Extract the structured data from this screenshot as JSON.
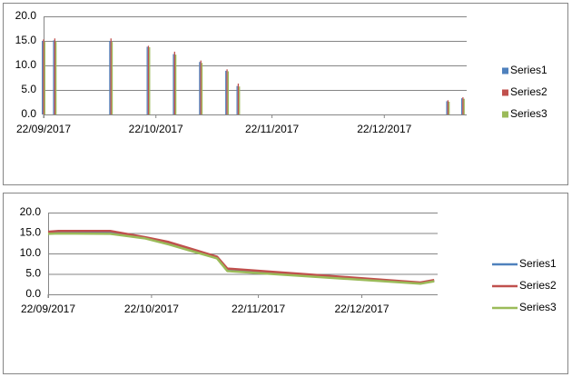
{
  "chart_data": [
    {
      "type": "bar",
      "x": [
        "22/09/2017",
        "25/09/2017",
        "10/10/2017",
        "20/10/2017",
        "27/10/2017",
        "03/11/2017",
        "10/11/2017",
        "13/11/2017",
        "08/01/2018",
        "12/01/2018"
      ],
      "series": [
        {
          "name": "Series1",
          "color": "#4f81bd",
          "values": [
            15.0,
            15.1,
            15.0,
            13.8,
            12.3,
            10.7,
            8.9,
            5.8,
            2.7,
            3.3
          ]
        },
        {
          "name": "Series2",
          "color": "#c0504d",
          "values": [
            15.3,
            15.5,
            15.5,
            14.0,
            12.8,
            11.0,
            9.2,
            6.3,
            2.9,
            3.5
          ]
        },
        {
          "name": "Series3",
          "color": "#9bbb59",
          "values": [
            14.8,
            14.9,
            14.8,
            13.7,
            12.2,
            10.5,
            8.8,
            5.7,
            2.6,
            3.2
          ]
        }
      ],
      "xlim": [
        "22/09/2017",
        "13/01/2018"
      ],
      "xticks": [
        "22/09/2017",
        "22/10/2017",
        "22/11/2017",
        "22/12/2017"
      ],
      "ylim": [
        0,
        20
      ],
      "yticks": [
        {
          "value": 0,
          "label": "0.0"
        },
        {
          "value": 5,
          "label": "5.0"
        },
        {
          "value": 10,
          "label": "10.0"
        },
        {
          "value": 15,
          "label": "15.0"
        },
        {
          "value": 20,
          "label": "20.0"
        }
      ],
      "grid": true,
      "legend": "right"
    },
    {
      "type": "line",
      "x": [
        "22/09/2017",
        "25/09/2017",
        "10/10/2017",
        "20/10/2017",
        "27/10/2017",
        "03/11/2017",
        "10/11/2017",
        "13/11/2017",
        "08/01/2018",
        "12/01/2018"
      ],
      "series": [
        {
          "name": "Series1",
          "color": "#4f81bd",
          "values": [
            15.0,
            15.1,
            15.0,
            13.8,
            12.3,
            10.7,
            8.9,
            5.8,
            2.7,
            3.3
          ]
        },
        {
          "name": "Series2",
          "color": "#c0504d",
          "values": [
            15.3,
            15.5,
            15.5,
            14.0,
            12.8,
            11.0,
            9.2,
            6.3,
            2.9,
            3.5
          ]
        },
        {
          "name": "Series3",
          "color": "#9bbb59",
          "values": [
            14.8,
            14.9,
            14.8,
            13.7,
            12.2,
            10.5,
            8.8,
            5.7,
            2.6,
            3.2
          ]
        }
      ],
      "xlim": [
        "22/09/2017",
        "13/01/2018"
      ],
      "xticks": [
        "22/09/2017",
        "22/10/2017",
        "22/11/2017",
        "22/12/2017"
      ],
      "ylim": [
        0,
        20
      ],
      "yticks": [
        {
          "value": 0,
          "label": "0.0"
        },
        {
          "value": 5,
          "label": "5.0"
        },
        {
          "value": 10,
          "label": "10.0"
        },
        {
          "value": 15,
          "label": "15.0"
        },
        {
          "value": 20,
          "label": "20.0"
        }
      ],
      "grid": true,
      "legend": "right"
    }
  ]
}
